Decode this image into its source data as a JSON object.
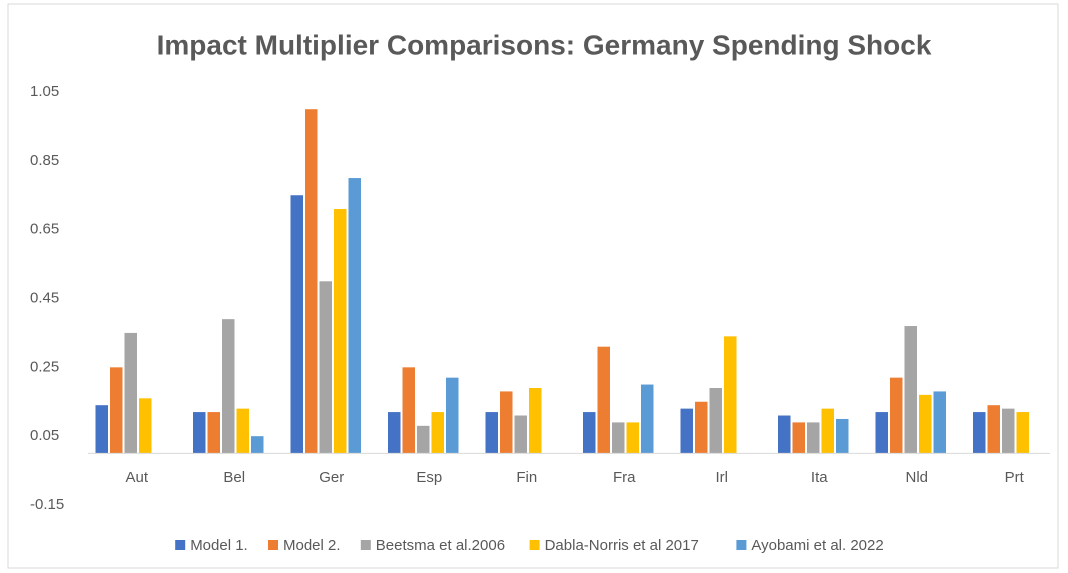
{
  "chart_data": {
    "type": "bar",
    "title": "Impact Multiplier Comparisons: Germany Spending Shock",
    "categories": [
      "Aut",
      "Bel",
      "Ger",
      "Esp",
      "Fin",
      "Fra",
      "Irl",
      "Ita",
      "Nld",
      "Prt"
    ],
    "series": [
      {
        "name": "Model 1.",
        "color": "#4472c4",
        "values": [
          0.14,
          0.12,
          0.75,
          0.12,
          0.12,
          0.12,
          0.13,
          0.11,
          0.12,
          0.12
        ]
      },
      {
        "name": "Model 2.",
        "color": "#ed7d31",
        "values": [
          0.25,
          0.12,
          1.0,
          0.25,
          0.18,
          0.31,
          0.15,
          0.09,
          0.22,
          0.14
        ]
      },
      {
        "name": "Beetsma et al.2006",
        "color": "#a5a5a5",
        "values": [
          0.35,
          0.39,
          0.5,
          0.08,
          0.11,
          0.09,
          0.19,
          0.09,
          0.37,
          0.13
        ]
      },
      {
        "name": "Dabla-Norris et al 2017",
        "color": "#ffc000",
        "values": [
          0.16,
          0.13,
          0.71,
          0.12,
          0.19,
          0.09,
          0.34,
          0.13,
          0.17,
          0.12
        ]
      },
      {
        "name": "Ayobami et al. 2022",
        "color": "#5b9bd5",
        "values": [
          null,
          0.05,
          0.8,
          0.22,
          null,
          0.2,
          null,
          0.1,
          0.18,
          null
        ]
      }
    ],
    "ylim": [
      -0.15,
      1.05
    ],
    "yticks": [
      -0.15,
      0.05,
      0.25,
      0.45,
      0.65,
      0.85,
      1.05
    ],
    "grid": false,
    "legend": "bottom"
  }
}
